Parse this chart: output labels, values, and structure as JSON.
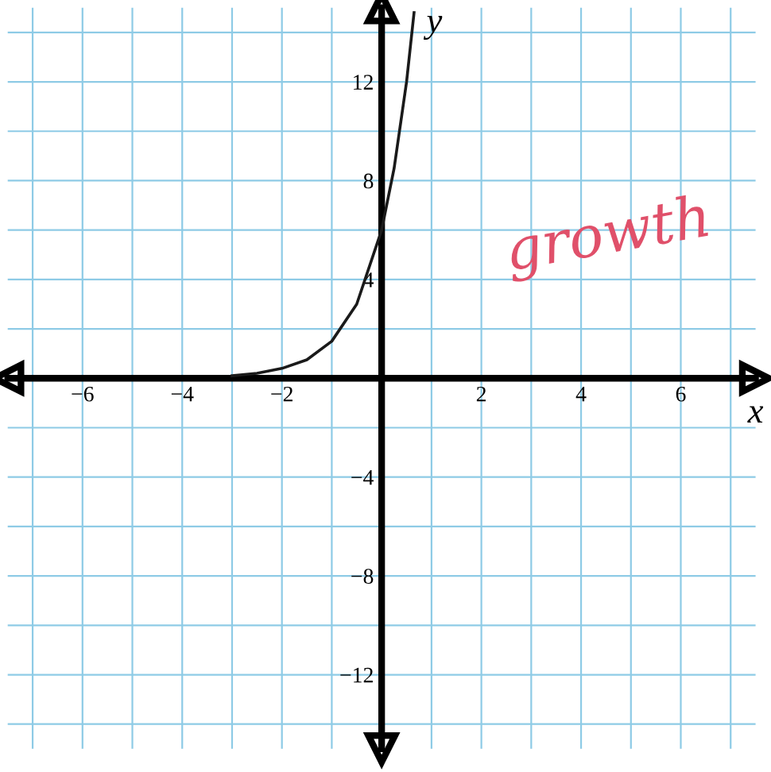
{
  "chart_data": {
    "type": "line",
    "xlabel": "x",
    "ylabel": "y",
    "x": [
      -3,
      -2.5,
      -2,
      -1.5,
      -1,
      -0.5,
      0,
      0.25,
      0.5,
      0.65
    ],
    "series": [
      {
        "color": "#1a1a1a",
        "values": [
          0.1,
          0.2,
          0.4,
          0.75,
          1.5,
          3,
          6,
          8.5,
          12,
          14.8
        ]
      }
    ],
    "xlim": [
      -7.5,
      7.5
    ],
    "ylim": [
      -15,
      15
    ],
    "xticks": [
      {
        "value": -6,
        "label": "−6"
      },
      {
        "value": -4,
        "label": "−4"
      },
      {
        "value": -2,
        "label": "−2"
      },
      2,
      4,
      6
    ],
    "yticks": [
      {
        "value": -12,
        "label": "−12"
      },
      {
        "value": -8,
        "label": "−8"
      },
      {
        "value": -4,
        "label": "−4"
      },
      4,
      8,
      12
    ],
    "grid": true,
    "marker": "none",
    "line_style": "solid",
    "annotations": [
      "growth"
    ]
  }
}
